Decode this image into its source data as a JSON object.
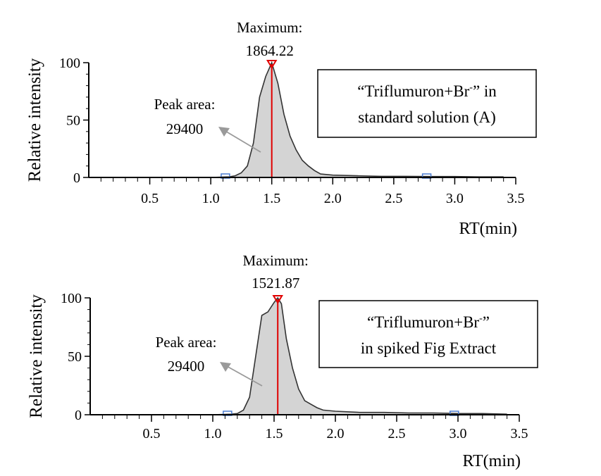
{
  "chart_data": [
    {
      "type": "area",
      "ylabel": "Relative intensity",
      "xlabel": "RT(min)",
      "xlim": [
        0,
        3.5
      ],
      "ylim": [
        0,
        100
      ],
      "x_ticks": [
        "0.5",
        "1.0",
        "1.5",
        "2.0",
        "2.5",
        "3.0",
        "3.5"
      ],
      "y_ticks": [
        "0",
        "50",
        "100"
      ],
      "max_label": "Maximum:",
      "max_value": "1864.22",
      "peak_rt": 1.5,
      "area_label": "Peak area:",
      "area_value": "29400",
      "legend_main": "“Triflumuron+Br",
      "legend_sup": "-",
      "legend_tail": "” in",
      "legend_line2": "standard solution (A)",
      "series": [
        {
          "x": [
            1.0,
            1.15,
            1.2,
            1.25,
            1.3,
            1.35,
            1.4,
            1.45,
            1.5,
            1.55,
            1.6,
            1.65,
            1.7,
            1.75,
            1.8,
            1.85,
            1.9,
            2.0,
            2.2,
            2.4,
            2.6,
            2.8,
            3.0,
            3.2,
            3.4
          ],
          "values": [
            0,
            0.5,
            1.5,
            4,
            10,
            30,
            70,
            88,
            100,
            82,
            55,
            36,
            24,
            15,
            10,
            6,
            3,
            2,
            1.5,
            1,
            1,
            0.8,
            0.8,
            0.5,
            0.5
          ]
        }
      ]
    },
    {
      "type": "area",
      "ylabel": "Relative intensity",
      "xlabel": "RT(min)",
      "xlim": [
        0,
        3.5
      ],
      "ylim": [
        0,
        100
      ],
      "x_ticks": [
        "0.5",
        "1.0",
        "1.5",
        "2.0",
        "2.5",
        "3.0",
        "3.5"
      ],
      "y_ticks": [
        "0",
        "50",
        "100"
      ],
      "max_label": "Maximum:",
      "max_value": "1521.87",
      "peak_rt": 1.53,
      "area_label": "Peak area:",
      "area_value": "29400",
      "legend_main": "“Triflumuron+Br",
      "legend_sup": "-",
      "legend_tail": "”",
      "legend_line2": "in spiked Fig Extract",
      "series": [
        {
          "x": [
            1.0,
            1.15,
            1.2,
            1.25,
            1.3,
            1.35,
            1.4,
            1.45,
            1.5,
            1.53,
            1.56,
            1.6,
            1.65,
            1.7,
            1.75,
            1.8,
            1.85,
            1.9,
            2.0,
            2.2,
            2.4,
            2.6,
            2.8,
            3.0,
            3.2,
            3.4
          ],
          "values": [
            0,
            0.5,
            1,
            4,
            15,
            50,
            85,
            88,
            96,
            100,
            95,
            65,
            40,
            22,
            12,
            9,
            6,
            4,
            3,
            2,
            2,
            1.5,
            1.5,
            1,
            1,
            0.5
          ]
        }
      ]
    }
  ]
}
